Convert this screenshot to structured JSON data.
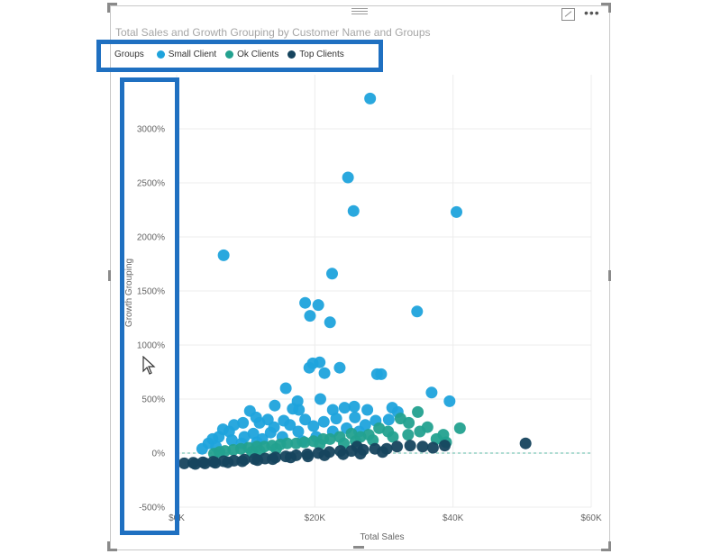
{
  "chart_data": {
    "type": "scatter",
    "title": "Total Sales and Growth Grouping by Customer Name and Groups",
    "xlabel": "Total Sales",
    "ylabel": "Growth Grouping",
    "xlim": [
      0,
      60000
    ],
    "ylim": [
      -500,
      3500
    ],
    "x_ticks": [
      0,
      20000,
      40000,
      60000
    ],
    "x_tick_labels": [
      "$0K",
      "$20K",
      "$40K",
      "$60K"
    ],
    "y_ticks": [
      -500,
      0,
      500,
      1000,
      1500,
      2000,
      2500,
      3000
    ],
    "y_tick_labels": [
      "-500%",
      "0%",
      "500%",
      "1000%",
      "1500%",
      "2000%",
      "2500%",
      "3000%"
    ],
    "legend_title": "Groups",
    "legend_position": "top-left",
    "grid": true,
    "reference_line_y": 0,
    "series": [
      {
        "name": "Small Client",
        "color": "#1fa3dc",
        "points": [
          [
            6800,
            1830
          ],
          [
            28000,
            3280
          ],
          [
            24800,
            2550
          ],
          [
            25600,
            2240
          ],
          [
            40500,
            2230
          ],
          [
            22500,
            1660
          ],
          [
            34800,
            1310
          ],
          [
            18600,
            1390
          ],
          [
            20500,
            1370
          ],
          [
            19300,
            1270
          ],
          [
            22200,
            1210
          ],
          [
            19700,
            830
          ],
          [
            20700,
            840
          ],
          [
            19200,
            790
          ],
          [
            23600,
            790
          ],
          [
            29000,
            730
          ],
          [
            29600,
            730
          ],
          [
            21400,
            740
          ],
          [
            36900,
            560
          ],
          [
            39500,
            480
          ],
          [
            15800,
            600
          ],
          [
            17500,
            480
          ],
          [
            17700,
            400
          ],
          [
            16800,
            410
          ],
          [
            14200,
            440
          ],
          [
            25700,
            430
          ],
          [
            31200,
            420
          ],
          [
            20800,
            500
          ],
          [
            22600,
            400
          ],
          [
            24300,
            420
          ],
          [
            27600,
            400
          ],
          [
            32000,
            380
          ],
          [
            10600,
            390
          ],
          [
            11500,
            330
          ],
          [
            13200,
            310
          ],
          [
            9600,
            280
          ],
          [
            8300,
            260
          ],
          [
            6700,
            220
          ],
          [
            7600,
            200
          ],
          [
            12000,
            280
          ],
          [
            15500,
            300
          ],
          [
            18600,
            310
          ],
          [
            21300,
            290
          ],
          [
            23100,
            320
          ],
          [
            25800,
            330
          ],
          [
            28800,
            300
          ],
          [
            30700,
            310
          ],
          [
            5200,
            130
          ],
          [
            4600,
            90
          ],
          [
            6100,
            150
          ],
          [
            14100,
            240
          ],
          [
            16400,
            260
          ],
          [
            19800,
            250
          ],
          [
            24600,
            230
          ],
          [
            27300,
            260
          ],
          [
            11100,
            180
          ],
          [
            13600,
            190
          ],
          [
            9800,
            150
          ],
          [
            17600,
            200
          ],
          [
            22600,
            200
          ],
          [
            3700,
            40
          ],
          [
            5700,
            60
          ],
          [
            8000,
            120
          ],
          [
            12400,
            130
          ],
          [
            15300,
            150
          ],
          [
            20200,
            150
          ],
          [
            26400,
            200
          ],
          [
            9400,
            90
          ],
          [
            11600,
            100
          ],
          [
            18200,
            110
          ]
        ]
      },
      {
        "name": "Ok Clients",
        "color": "#23a18f",
        "points": [
          [
            41000,
            230
          ],
          [
            36300,
            240
          ],
          [
            38600,
            170
          ],
          [
            35200,
            200
          ],
          [
            37600,
            130
          ],
          [
            33500,
            170
          ],
          [
            32400,
            320
          ],
          [
            33600,
            280
          ],
          [
            34900,
            380
          ],
          [
            39000,
            100
          ],
          [
            29300,
            230
          ],
          [
            30600,
            200
          ],
          [
            27800,
            170
          ],
          [
            26600,
            150
          ],
          [
            25300,
            180
          ],
          [
            23600,
            150
          ],
          [
            22200,
            130
          ],
          [
            21200,
            130
          ],
          [
            19800,
            110
          ],
          [
            18500,
            100
          ],
          [
            17300,
            90
          ],
          [
            16000,
            90
          ],
          [
            15000,
            80
          ],
          [
            13800,
            70
          ],
          [
            12700,
            60
          ],
          [
            11600,
            60
          ],
          [
            10400,
            50
          ],
          [
            9300,
            40
          ],
          [
            8200,
            30
          ],
          [
            7000,
            20
          ],
          [
            31300,
            150
          ],
          [
            28400,
            120
          ],
          [
            25900,
            110
          ],
          [
            24200,
            90
          ],
          [
            20700,
            80
          ],
          [
            14400,
            40
          ],
          [
            12000,
            20
          ],
          [
            10900,
            10
          ],
          [
            6200,
            10
          ],
          [
            5400,
            -5
          ]
        ]
      },
      {
        "name": "Top Clients",
        "color": "#16445e",
        "points": [
          [
            50500,
            90
          ],
          [
            35600,
            60
          ],
          [
            33800,
            70
          ],
          [
            31900,
            60
          ],
          [
            30400,
            40
          ],
          [
            28700,
            40
          ],
          [
            27000,
            30
          ],
          [
            25300,
            20
          ],
          [
            23700,
            20
          ],
          [
            22100,
            10
          ],
          [
            20500,
            0
          ],
          [
            18900,
            -10
          ],
          [
            17300,
            -20
          ],
          [
            15800,
            -30
          ],
          [
            14300,
            -40
          ],
          [
            12800,
            -50
          ],
          [
            11300,
            -55
          ],
          [
            9800,
            -60
          ],
          [
            8300,
            -70
          ],
          [
            6800,
            -75
          ],
          [
            5300,
            -80
          ],
          [
            3800,
            -85
          ],
          [
            2400,
            -90
          ],
          [
            1100,
            -95
          ],
          [
            29800,
            10
          ],
          [
            26600,
            -5
          ],
          [
            24100,
            -10
          ],
          [
            21400,
            -20
          ],
          [
            19000,
            -30
          ],
          [
            16500,
            -40
          ],
          [
            13900,
            -55
          ],
          [
            11700,
            -65
          ],
          [
            9500,
            -75
          ],
          [
            7400,
            -85
          ],
          [
            5600,
            -90
          ],
          [
            4100,
            -95
          ],
          [
            2700,
            -100
          ],
          [
            38800,
            70
          ],
          [
            37100,
            50
          ],
          [
            26100,
            60
          ]
        ]
      }
    ]
  },
  "cursor_icon": "arrow-cursor-icon",
  "highlight_color": "#1f70c1"
}
